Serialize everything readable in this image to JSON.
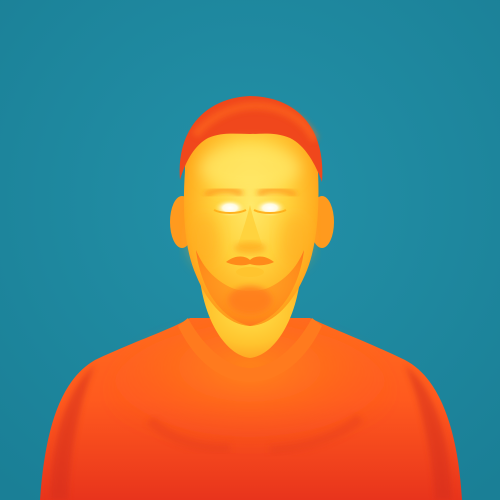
{
  "image": {
    "subject": "thermal-portrait",
    "palette": {
      "background": "#1a7f96",
      "background_light": "#2391a8",
      "hot_white": "#fffbe0",
      "hot_yellow": "#ffe24a",
      "warm_amber": "#ffb21e",
      "warm_orange": "#ff8a1a",
      "mid_orange_red": "#ff5a1e",
      "cool_red": "#e8341c",
      "cooler_red": "#c92a1a",
      "hair_red": "#f0471c"
    }
  }
}
